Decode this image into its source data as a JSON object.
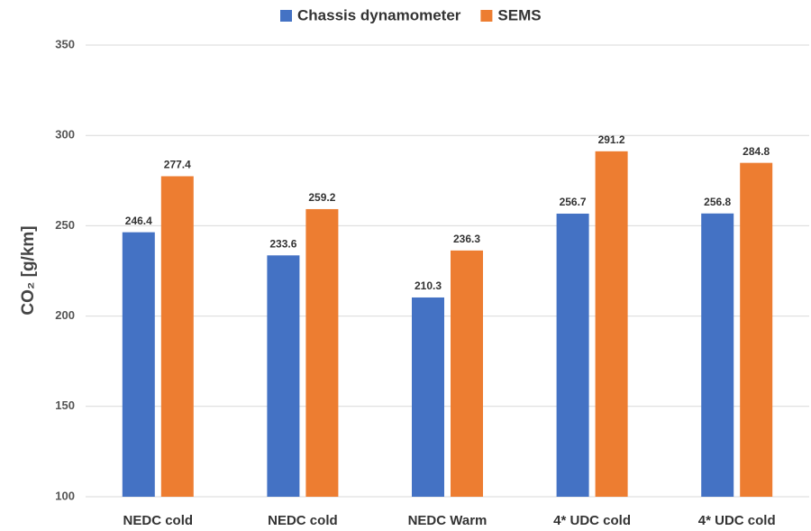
{
  "chart_data": {
    "type": "bar",
    "ylabel": "CO₂ [g/km]",
    "categories": [
      "NEDC cold",
      "NEDC cold",
      "NEDC Warm",
      "4* UDC cold",
      "4* UDC cold"
    ],
    "series": [
      {
        "name": "Chassis dynamometer",
        "color": "#4472c4",
        "values": [
          246.4,
          233.6,
          210.3,
          256.7,
          256.8
        ]
      },
      {
        "name": "SEMS",
        "color": "#ed7d31",
        "values": [
          277.4,
          259.2,
          236.3,
          291.2,
          284.8
        ]
      }
    ],
    "ylim": [
      100,
      350
    ],
    "yticks": [
      100,
      150,
      200,
      250,
      300,
      350
    ],
    "grid": true,
    "legend": "top"
  }
}
